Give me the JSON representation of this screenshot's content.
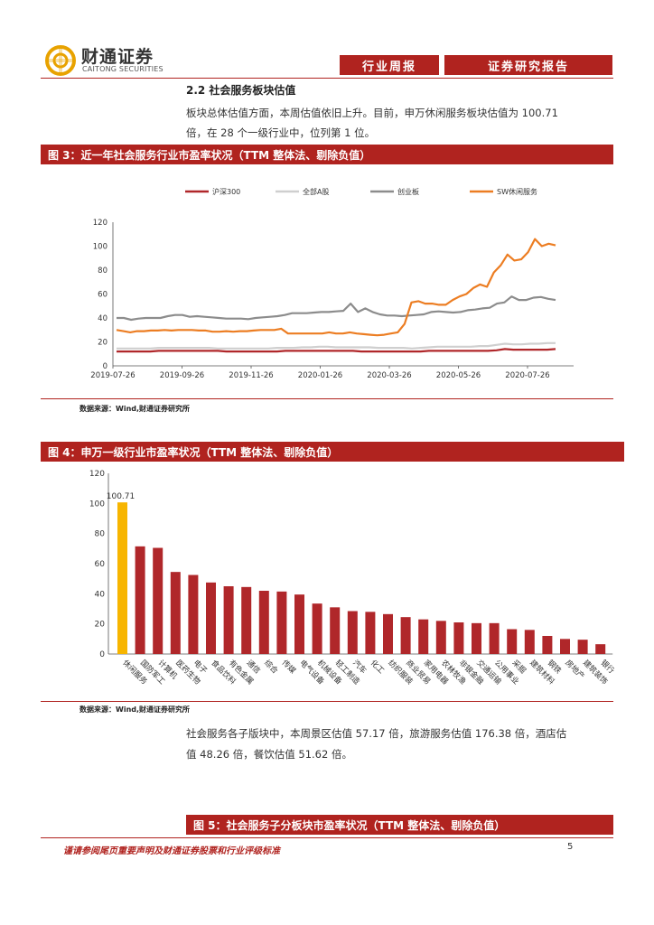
{
  "header": {
    "logo_cn": "财通证券",
    "logo_en": "CAITONG SECURITIES",
    "report_type": "行业周报",
    "report_category": "证券研究报告"
  },
  "section": {
    "title": "2.2  社会服务板块估值",
    "para1_line1": "板块总体估值方面，本周估值依旧上升。目前，申万休闲服务板块估值为 100.71",
    "para1_line2": "倍，在 28 个一级行业中，位列第 1 位。",
    "para2_line1": "社会服务各子版块中，本周景区估值 57.17 倍，旅游服务估值 176.38 倍，酒店估",
    "para2_line2": "值 48.26 倍，餐饮估值 51.62 倍。"
  },
  "figure3": {
    "title": "图 3：近一年社会服务行业市盈率状况（TTM 整体法、剔除负值）",
    "source": "数据来源：Wind,财通证券研究所"
  },
  "figure4": {
    "title": "图 4：申万一级行业市盈率状况（TTM 整体法、剔除负值）",
    "source": "数据来源：Wind,财通证券研究所"
  },
  "figure5": {
    "title": "图 5：社会服务子分板块市盈率状况（TTM 整体法、剔除负值）"
  },
  "footer": {
    "disclaimer": "谨请参阅尾页重要声明及财通证券股票和行业评级标准",
    "page": "5"
  },
  "chart_data": [
    {
      "type": "line",
      "x_ticks": [
        "2019-07-26",
        "2019-09-26",
        "2019-11-26",
        "2020-01-26",
        "2020-03-26",
        "2020-05-26",
        "2020-07-26"
      ],
      "ylim": [
        0,
        120
      ],
      "y_ticks": [
        0,
        20,
        40,
        60,
        80,
        100,
        120
      ],
      "legend_position": "top",
      "series": [
        {
          "name": "沪深300",
          "color": "#b0272a",
          "values": [
            12,
            12,
            12,
            12,
            12,
            12.5,
            12.5,
            12.5,
            12.5,
            12.5,
            12.5,
            12.5,
            12.5,
            12,
            12,
            12,
            12,
            12,
            12,
            12,
            12.5,
            12.5,
            12.5,
            12.5,
            12.5,
            12.5,
            12.5,
            12.5,
            12.5,
            12,
            12,
            12,
            12,
            12,
            12,
            12,
            12,
            12.5,
            12.5,
            12.5,
            12.5,
            12.5,
            12.5,
            12.5,
            12.5,
            13,
            14,
            13.5,
            13.5,
            13.5,
            13.5,
            13.5,
            14
          ]
        },
        {
          "name": "全部A股",
          "color": "#cfcfcf",
          "values": [
            14.5,
            14.5,
            14.5,
            14.5,
            14.5,
            15,
            15,
            15,
            15,
            15,
            15,
            15,
            14.5,
            14.5,
            14.5,
            14.5,
            14.5,
            14.5,
            14.5,
            15,
            15,
            15,
            15.5,
            15.5,
            16,
            16,
            15.5,
            15.5,
            15.5,
            15.5,
            15.5,
            15,
            15,
            15,
            15,
            14.5,
            15,
            15.5,
            16,
            16,
            16,
            16,
            16,
            16.5,
            16.5,
            17.5,
            18.5,
            18,
            18,
            18.5,
            18.5,
            19,
            19
          ]
        },
        {
          "name": "创业板",
          "color": "#8c8c8c",
          "values": [
            40,
            40,
            38.5,
            39.5,
            40,
            40,
            40,
            41.5,
            42.5,
            42.5,
            41,
            41.5,
            41,
            40.5,
            40,
            39.5,
            39.5,
            39.5,
            39,
            40,
            40.5,
            41,
            41.5,
            42.5,
            44,
            44,
            44,
            44.5,
            45,
            45,
            45.5,
            46,
            52,
            45,
            48,
            45,
            43,
            42,
            42,
            41.5,
            42,
            42.5,
            43,
            45,
            45.5,
            45,
            44.5,
            45,
            46.5,
            47,
            48,
            48.5,
            52,
            53,
            58,
            55,
            55,
            57,
            57.5,
            56,
            55
          ]
        },
        {
          "name": "SW休闲服务",
          "color": "#ec7d22",
          "values": [
            30,
            29,
            28,
            29,
            29,
            29.5,
            29.5,
            30,
            29.5,
            30,
            30,
            30,
            29.5,
            29.5,
            28.5,
            28.5,
            29,
            28.5,
            29,
            29,
            29.5,
            30,
            30,
            30,
            31,
            27,
            27,
            27,
            27,
            27,
            27,
            28,
            27,
            27,
            28,
            27,
            26.5,
            26,
            25.5,
            26,
            27,
            28,
            35,
            53,
            54,
            52,
            52,
            51,
            51,
            55,
            58,
            60,
            65,
            68,
            66,
            78,
            84,
            93,
            88,
            89,
            95,
            106,
            100,
            102,
            100.7
          ]
        }
      ]
    },
    {
      "type": "bar",
      "ylim": [
        0,
        120
      ],
      "y_ticks": [
        0,
        20,
        40,
        60,
        80,
        100,
        120
      ],
      "categories": [
        "休闲服务",
        "国防军工",
        "计算机",
        "医药生物",
        "电子",
        "食品饮料",
        "有色金属",
        "通信",
        "综合",
        "传媒",
        "电气设备",
        "机械设备",
        "轻工制造",
        "汽车",
        "化工",
        "纺织服装",
        "商业贸易",
        "家用电器",
        "农林牧渔",
        "非银金融",
        "交通运输",
        "公用事业",
        "采掘",
        "建筑材料",
        "钢铁",
        "房地产",
        "建筑装饰",
        "银行"
      ],
      "values": [
        100.71,
        71.5,
        70.5,
        54.5,
        52.5,
        47.5,
        45,
        44.5,
        42,
        41.5,
        39.5,
        33.5,
        31,
        28.5,
        28,
        26.5,
        24.5,
        23,
        22,
        21,
        20.5,
        20.5,
        16.5,
        16,
        12,
        10,
        9.5,
        6.5
      ],
      "highlight_color": "#f7b500",
      "bar_color": "#b0272a",
      "data_label": "100.71"
    }
  ]
}
